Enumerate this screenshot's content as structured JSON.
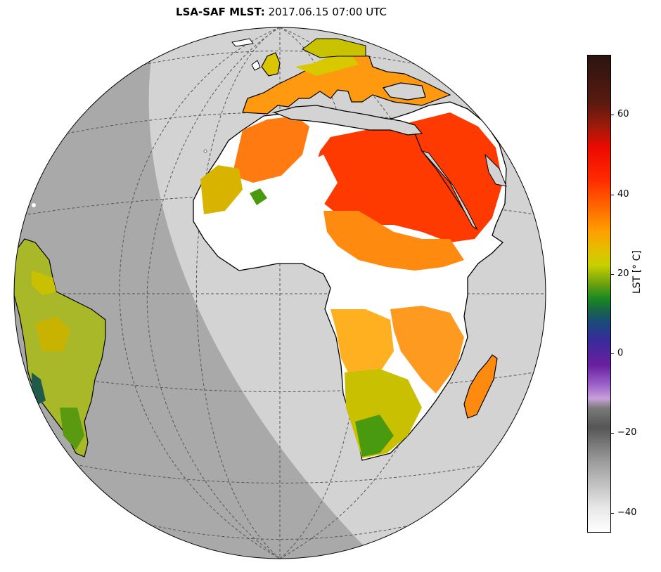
{
  "title": {
    "product": "LSA-SAF MLST",
    "separator": ":",
    "datetime": "2017.06.15 07:00 UTC"
  },
  "colorbar": {
    "label": "LST [° C]",
    "ticks": [
      "60",
      "40",
      "20",
      "0",
      "−20",
      "−40"
    ],
    "range": [
      -45,
      75
    ]
  },
  "colors": {
    "night_side": "#a9a9a9",
    "day_side": "#d3d3d3",
    "no_data": "#ffffff",
    "hot": "#ff2a00",
    "warm": "#ff8c00",
    "mild": "#d4c400",
    "cool": "#5a9a10"
  }
}
